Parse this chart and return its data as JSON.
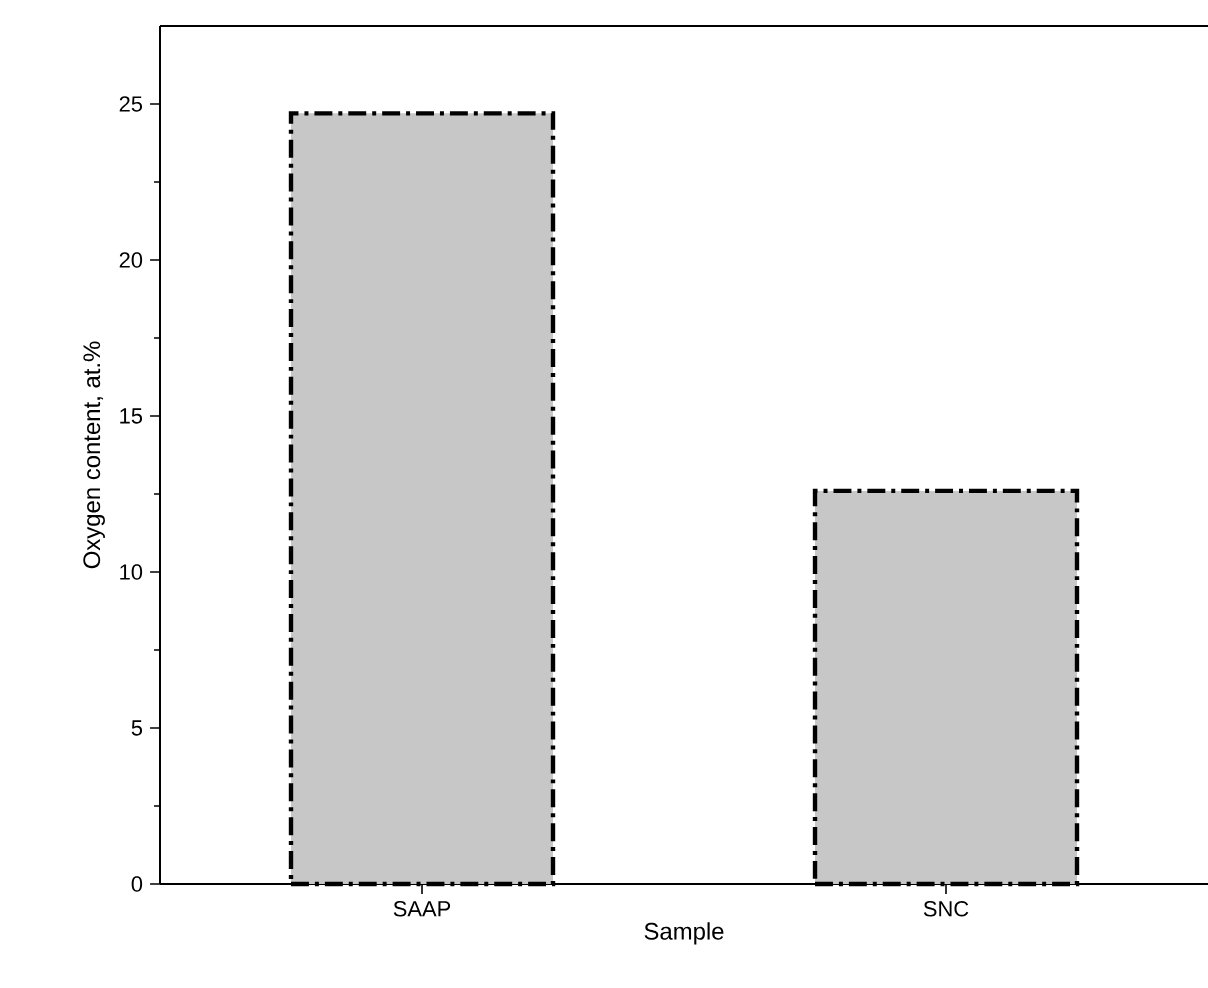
{
  "chart_data": {
    "type": "bar",
    "xlabel": "Sample",
    "ylabel": "Oxygen content, at.%",
    "categories": [
      "SAAP",
      "SNC"
    ],
    "values": [
      24.7,
      12.6
    ],
    "color": "#000000",
    "line_style": "dashdot",
    "ylim": [
      0,
      27.5
    ],
    "yticks": [
      0,
      5,
      10,
      15,
      20,
      25
    ]
  }
}
